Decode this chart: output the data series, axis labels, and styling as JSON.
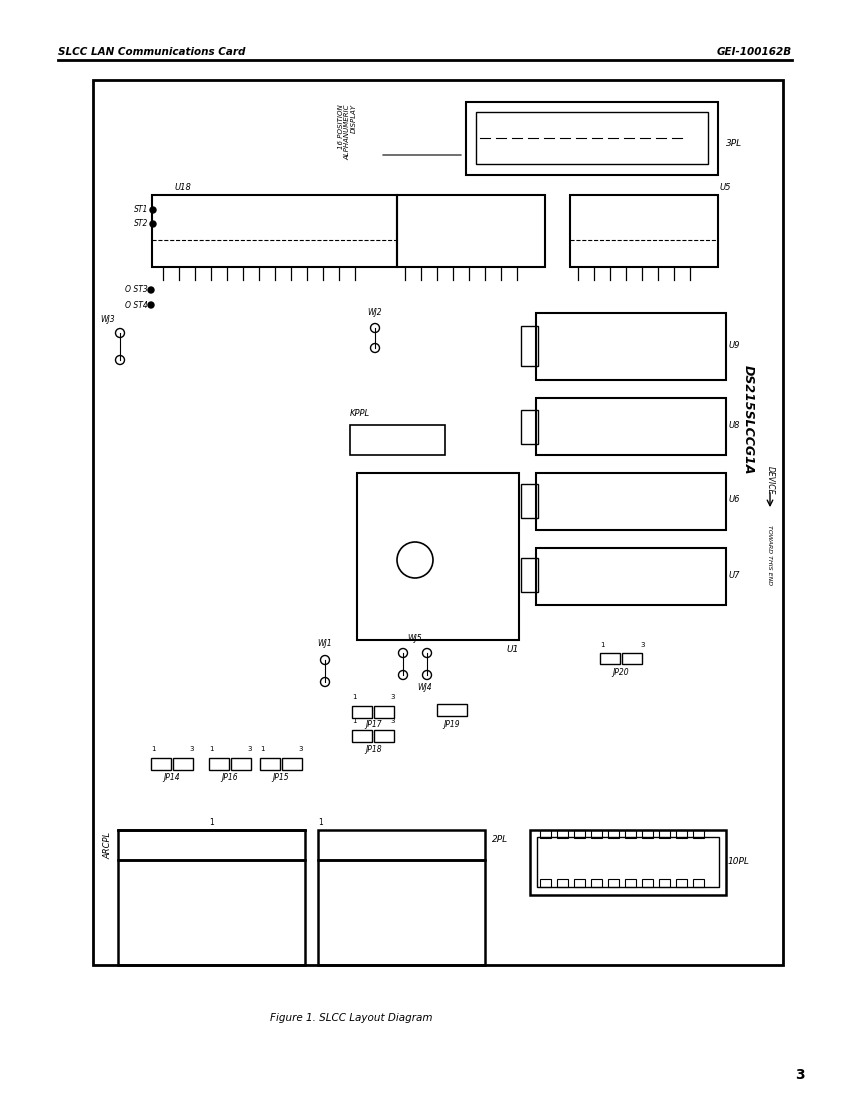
{
  "page_title_left": "SLCC LAN Communications Card",
  "page_title_right": "GEI-100162B",
  "figure_caption": "Figure 1. SLCC Layout Diagram",
  "page_number": "3",
  "bg_color": "#ffffff"
}
